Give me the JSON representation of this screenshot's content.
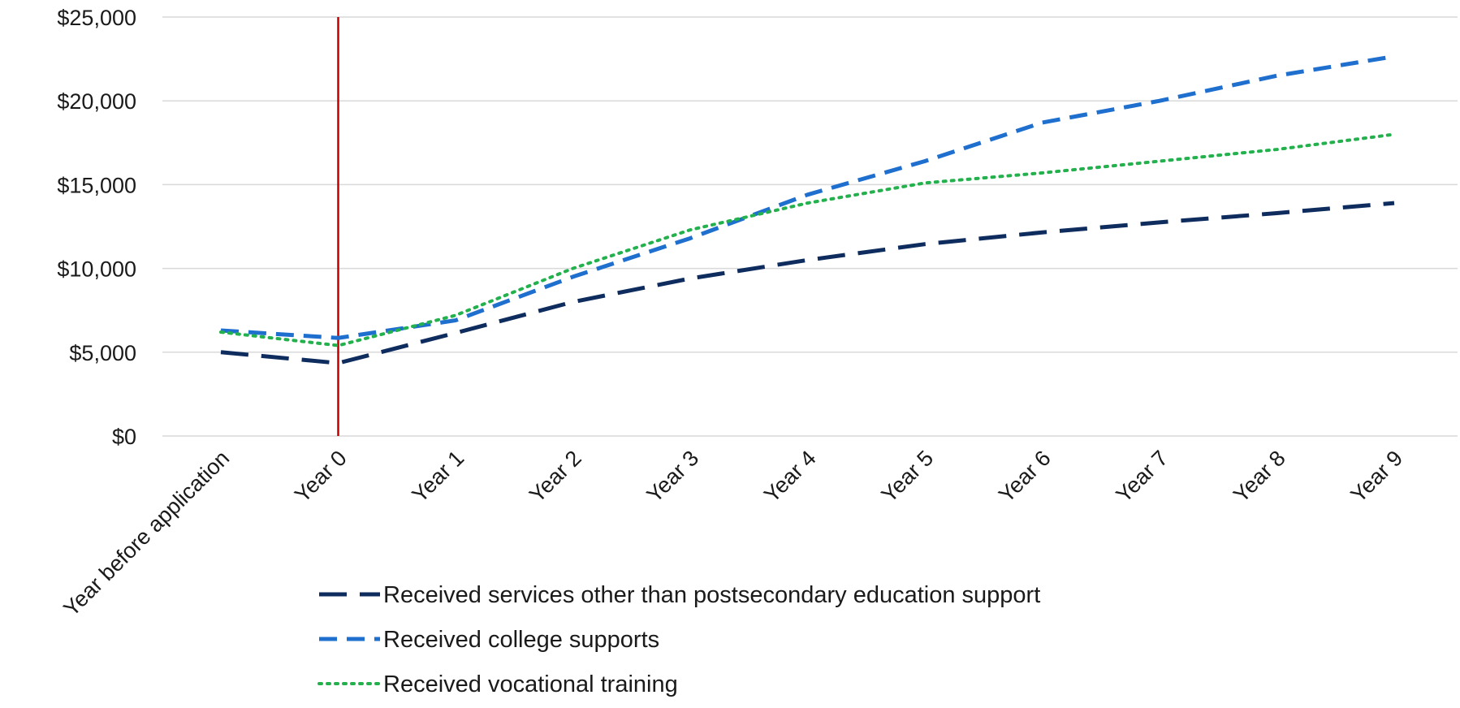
{
  "chart_data": {
    "type": "line",
    "categories": [
      "Year before application",
      "Year 0",
      "Year 1",
      "Year 2",
      "Year 3",
      "Year 4",
      "Year 5",
      "Year 6",
      "Year 7",
      "Year 8",
      "Year 9"
    ],
    "ylim": [
      0,
      25000
    ],
    "yticks": [
      0,
      5000,
      10000,
      15000,
      20000,
      25000
    ],
    "ytick_labels": [
      "$0",
      "$5,000",
      "$10,000",
      "$15,000",
      "$20,000",
      "$25,000"
    ],
    "grid": true,
    "legend_position": "bottom",
    "reference_line": {
      "category": "Year 0",
      "color": "#c00000"
    },
    "series": [
      {
        "name": "Received services other than postsecondary education support",
        "color": "#0e2d5e",
        "style": "long-dash",
        "values": [
          5000,
          4350,
          6150,
          8000,
          9400,
          10500,
          11450,
          12150,
          12750,
          13300,
          13900
        ]
      },
      {
        "name": "Received college supports",
        "color": "#1f6fcf",
        "style": "dash",
        "values": [
          6300,
          5850,
          6900,
          9500,
          11800,
          14400,
          16400,
          18700,
          20000,
          21500,
          22650
        ]
      },
      {
        "name": "Received vocational training",
        "color": "#22b14c",
        "style": "dot",
        "values": [
          6200,
          5400,
          7200,
          10000,
          12300,
          13900,
          15100,
          15700,
          16400,
          17100,
          18000
        ]
      }
    ]
  }
}
